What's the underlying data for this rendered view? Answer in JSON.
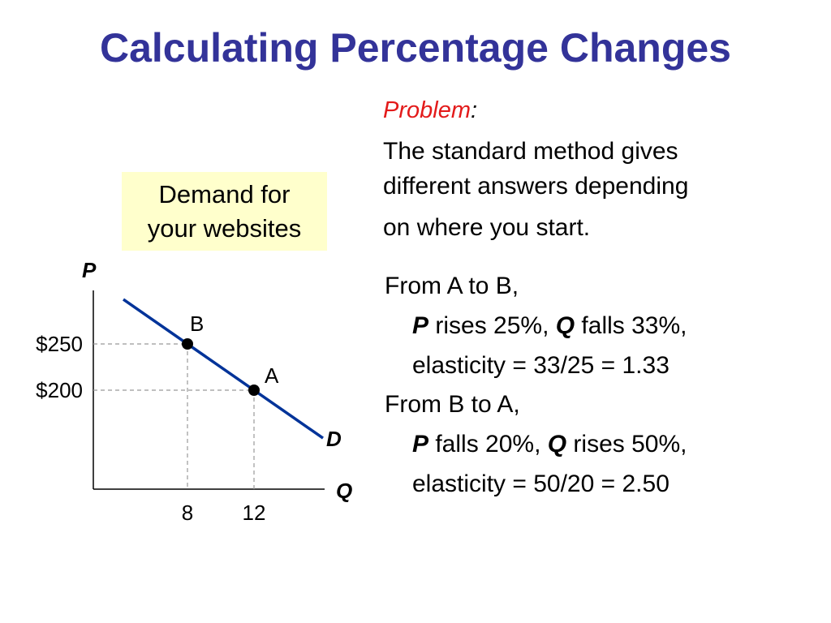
{
  "slide": {
    "title": "Calculating Percentage Changes"
  },
  "legend_box": {
    "line1": "Demand for",
    "line2": "your websites"
  },
  "problem": {
    "heading": "Problem",
    "colon": ":",
    "lines": [
      "The standard method gives",
      "different answers depending",
      "on where you start."
    ]
  },
  "calculations": {
    "a_to_b": {
      "heading": "From A to B,",
      "p_var": "P",
      "p_text": " rises 25%, ",
      "q_var": "Q",
      "q_text": " falls 33%,",
      "elasticity": "elasticity = 33/25 = 1.33"
    },
    "b_to_a": {
      "heading": "From B to A,",
      "p_var": "P",
      "p_text": " falls 20%, ",
      "q_var": "Q",
      "q_text": " rises 50%,",
      "elasticity": "elasticity = 50/20 = 2.50"
    }
  },
  "chart_data": {
    "type": "line",
    "xlabel": "Q",
    "ylabel": "P",
    "curve_label": "D",
    "points": [
      {
        "label": "B",
        "x": 8,
        "y": 250,
        "x_tick": "8",
        "y_tick": "$250"
      },
      {
        "label": "A",
        "x": 12,
        "y": 200,
        "x_tick": "12",
        "y_tick": "$200"
      }
    ],
    "colors": {
      "curve": "#003399",
      "points": "#000000",
      "guides": "#999999"
    }
  }
}
